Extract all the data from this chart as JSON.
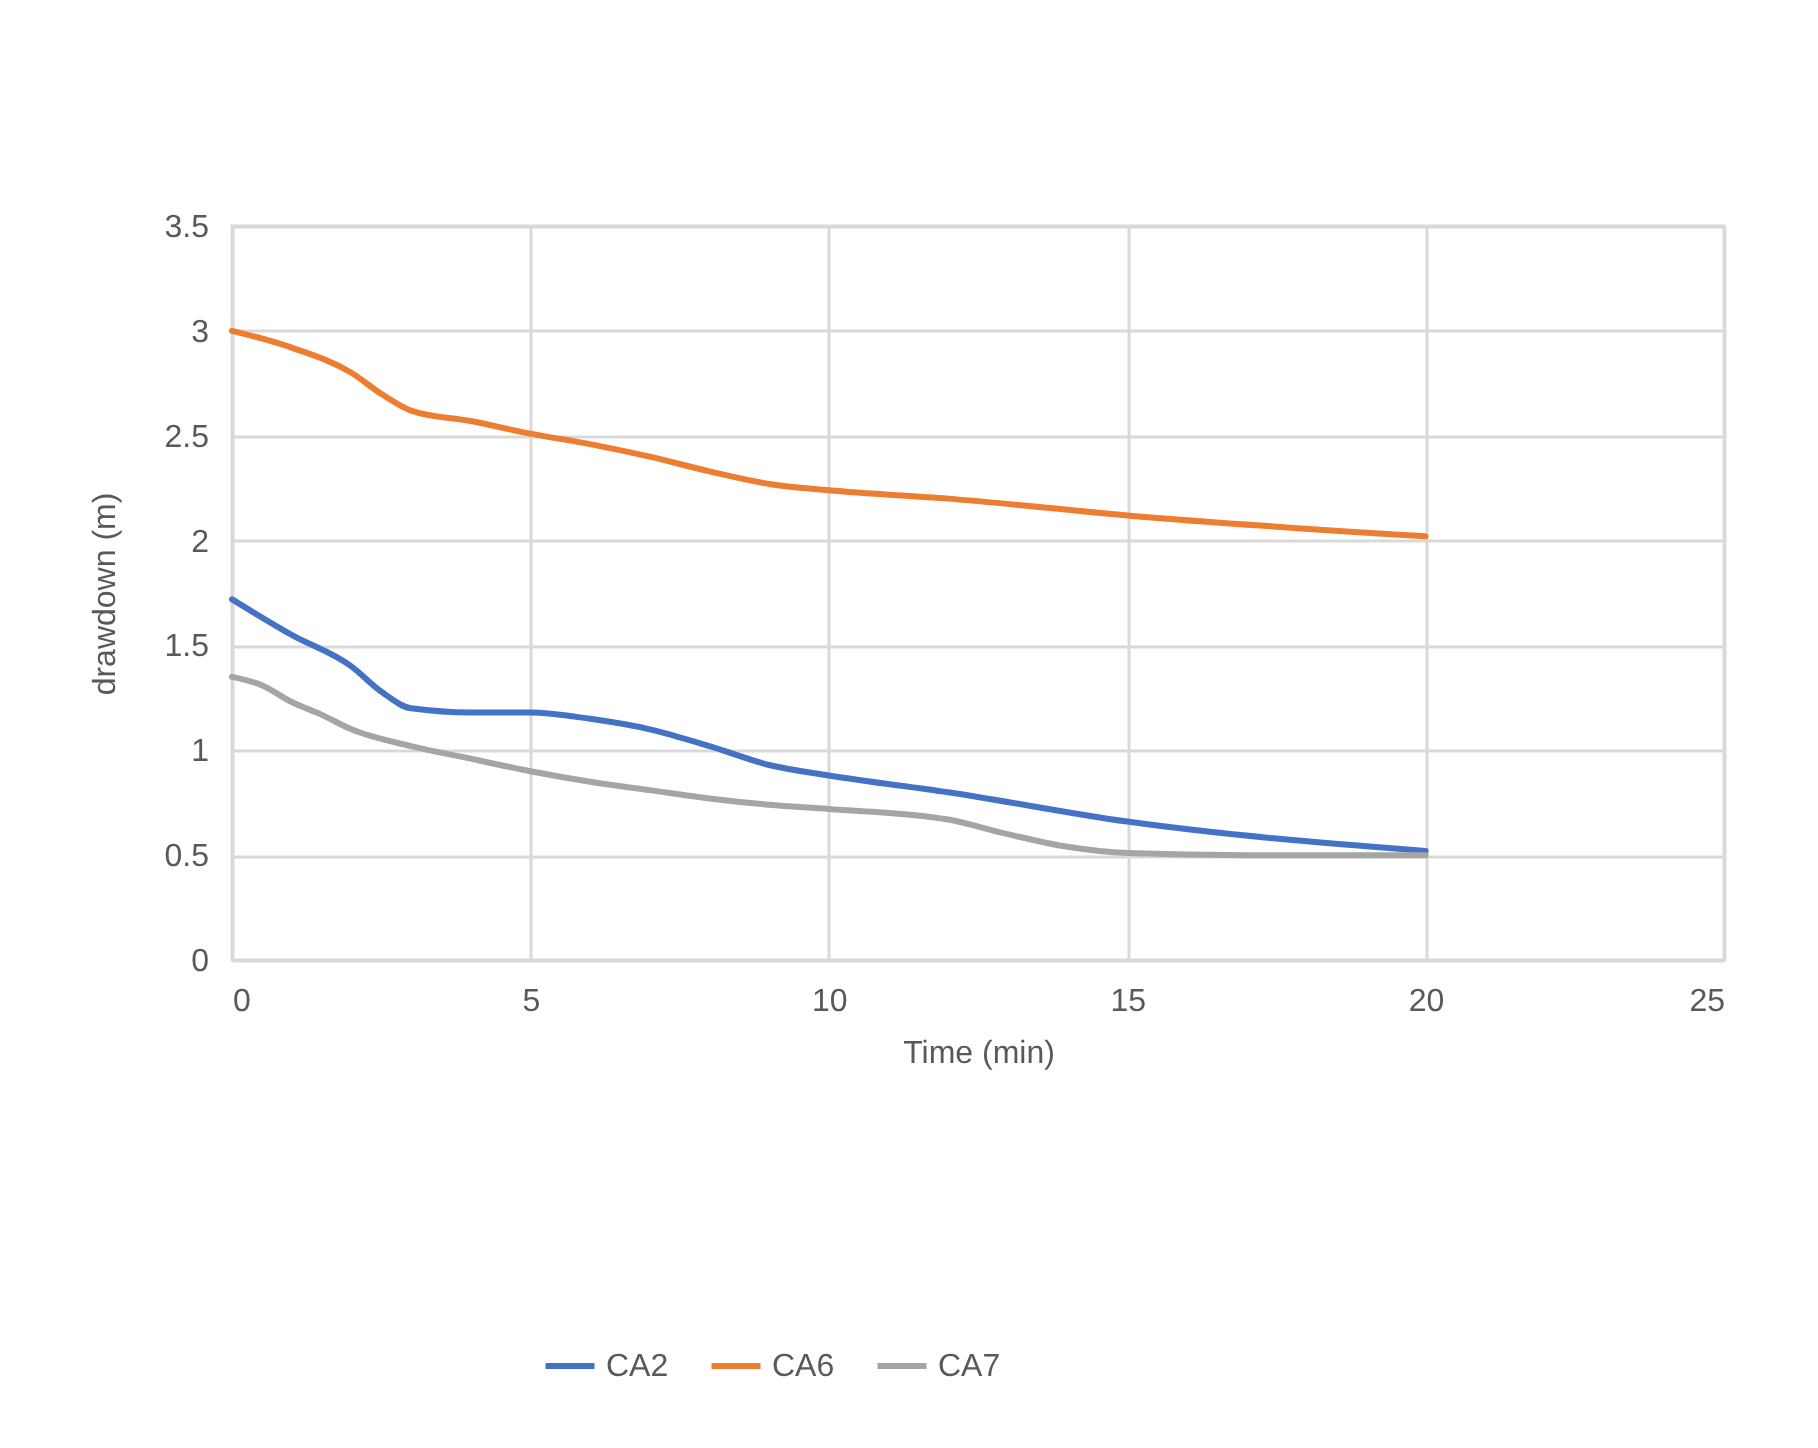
{
  "chart_data": {
    "type": "line",
    "xlabel": "Time (min)",
    "ylabel": "drawdown (m)",
    "xlim": [
      0,
      25
    ],
    "ylim": [
      0,
      3.5
    ],
    "xticks": [
      0,
      5,
      10,
      15,
      20,
      25
    ],
    "yticks": [
      0,
      0.5,
      1,
      1.5,
      2,
      2.5,
      3,
      3.5
    ],
    "grid": true,
    "legend": "bottom",
    "marker": "none",
    "line_style": "solid",
    "series": [
      {
        "name": "CA2",
        "color": "#4472c4",
        "x": [
          0,
          1,
          2,
          2.5,
          3,
          4,
          5,
          6,
          7,
          8,
          9,
          10,
          12,
          15,
          20
        ],
        "values": [
          1.72,
          1.55,
          1.4,
          1.28,
          1.2,
          1.18,
          1.18,
          1.15,
          1.1,
          1.02,
          0.93,
          0.88,
          0.8,
          0.66,
          0.52
        ]
      },
      {
        "name": "CA6",
        "color": "#ed7d31",
        "x": [
          0,
          1,
          2,
          2.5,
          3,
          4,
          5,
          6,
          7,
          8,
          9,
          10,
          12,
          15,
          20
        ],
        "values": [
          3.0,
          2.92,
          2.8,
          2.7,
          2.62,
          2.57,
          2.51,
          2.46,
          2.4,
          2.33,
          2.27,
          2.24,
          2.2,
          2.12,
          2.02
        ]
      },
      {
        "name": "CA7",
        "color": "#a5a5a5",
        "x": [
          0,
          0.5,
          1,
          1.5,
          2,
          3,
          4,
          5,
          6,
          7,
          8,
          9,
          10,
          12,
          13,
          14,
          15,
          17,
          20
        ],
        "values": [
          1.35,
          1.31,
          1.23,
          1.17,
          1.1,
          1.02,
          0.96,
          0.9,
          0.85,
          0.81,
          0.77,
          0.74,
          0.72,
          0.67,
          0.6,
          0.54,
          0.51,
          0.5,
          0.5
        ]
      }
    ]
  }
}
